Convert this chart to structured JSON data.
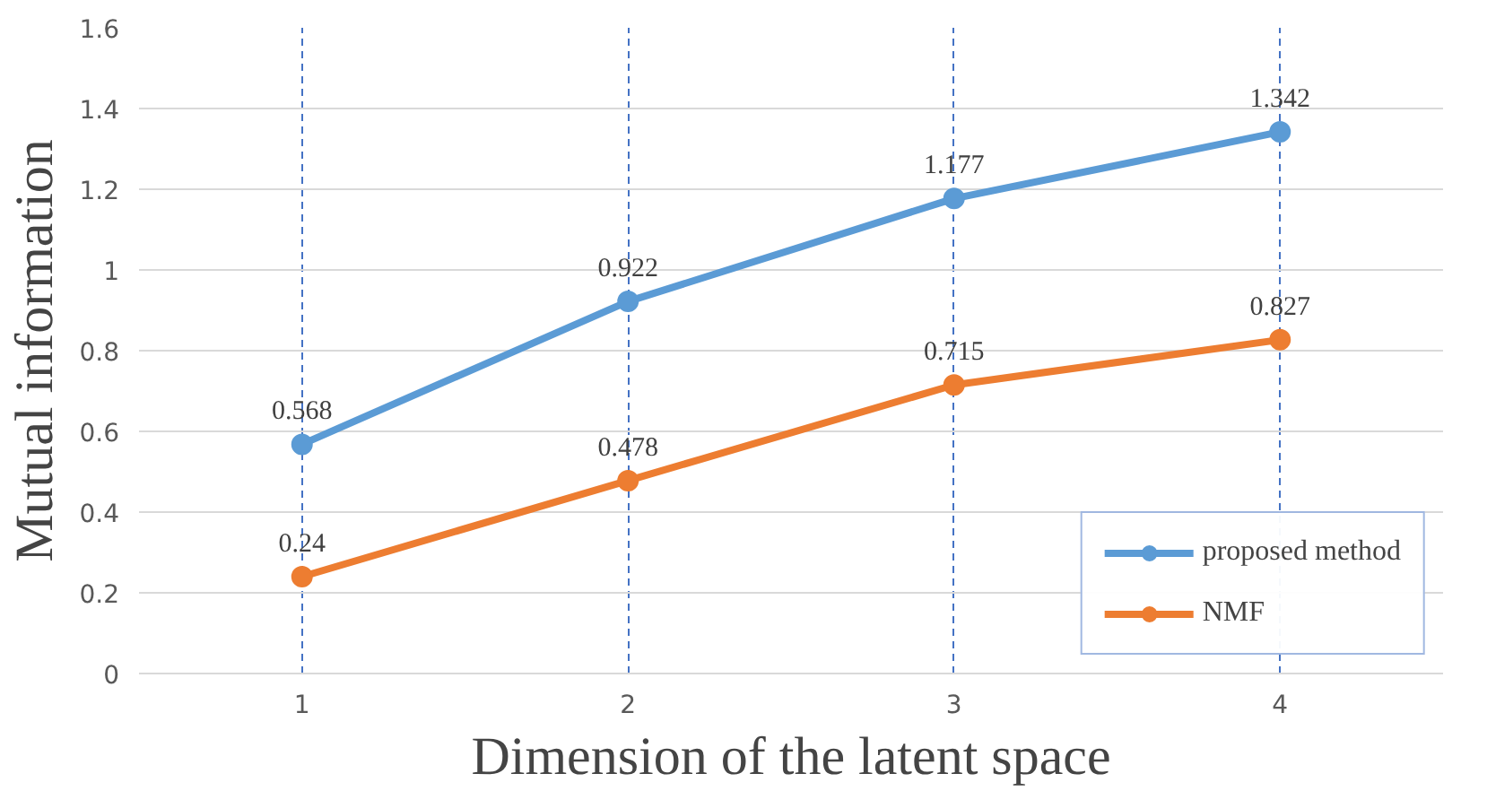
{
  "chart_data": {
    "type": "line",
    "xlabel": "Dimension of the latent space",
    "ylabel": "Mutual information",
    "categories": [
      "1",
      "2",
      "3",
      "4"
    ],
    "series": [
      {
        "name": "proposed method",
        "color": "#5b9bd5",
        "values": [
          0.568,
          0.922,
          1.177,
          1.342
        ]
      },
      {
        "name": "NMF",
        "color": "#ed7d31",
        "values": [
          0.24,
          0.478,
          0.715,
          0.827
        ]
      }
    ],
    "ylim": [
      0,
      1.6
    ],
    "yticks": [
      0,
      0.2,
      0.4,
      0.6,
      0.8,
      1,
      1.2,
      1.4,
      1.6
    ],
    "grid": true,
    "legend": "bottom right",
    "marker": "circle",
    "line_style": "solid",
    "data_labels": true
  }
}
